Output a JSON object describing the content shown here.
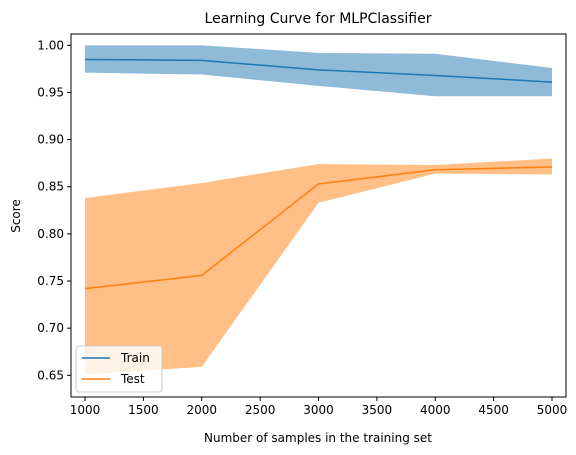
{
  "chart_data": {
    "type": "line",
    "title": "Learning Curve for MLPClassifier",
    "xlabel": "Number of samples in the training set",
    "ylabel": "Score",
    "xlim": [
      880,
      5120
    ],
    "ylim": [
      0.627,
      1.012
    ],
    "xticks": [
      1000,
      1500,
      2000,
      2500,
      3000,
      3500,
      4000,
      4500,
      5000
    ],
    "yticks": [
      0.65,
      0.7,
      0.75,
      0.8,
      0.85,
      0.9,
      0.95,
      1.0
    ],
    "x": [
      1000,
      2000,
      3000,
      4000,
      5000
    ],
    "grid": false,
    "legend_position": "lower-left",
    "series": [
      {
        "name": "Train",
        "color": "#1f77b4",
        "values": [
          0.985,
          0.984,
          0.974,
          0.968,
          0.961
        ],
        "band_upper": [
          1.0,
          1.0,
          0.992,
          0.991,
          0.976
        ],
        "band_lower": [
          0.971,
          0.969,
          0.957,
          0.946,
          0.946
        ]
      },
      {
        "name": "Test",
        "color": "#ff7f0e",
        "values": [
          0.742,
          0.756,
          0.853,
          0.868,
          0.871
        ],
        "band_upper": [
          0.838,
          0.854,
          0.874,
          0.873,
          0.88
        ],
        "band_lower": [
          0.651,
          0.659,
          0.833,
          0.864,
          0.863
        ]
      }
    ]
  }
}
